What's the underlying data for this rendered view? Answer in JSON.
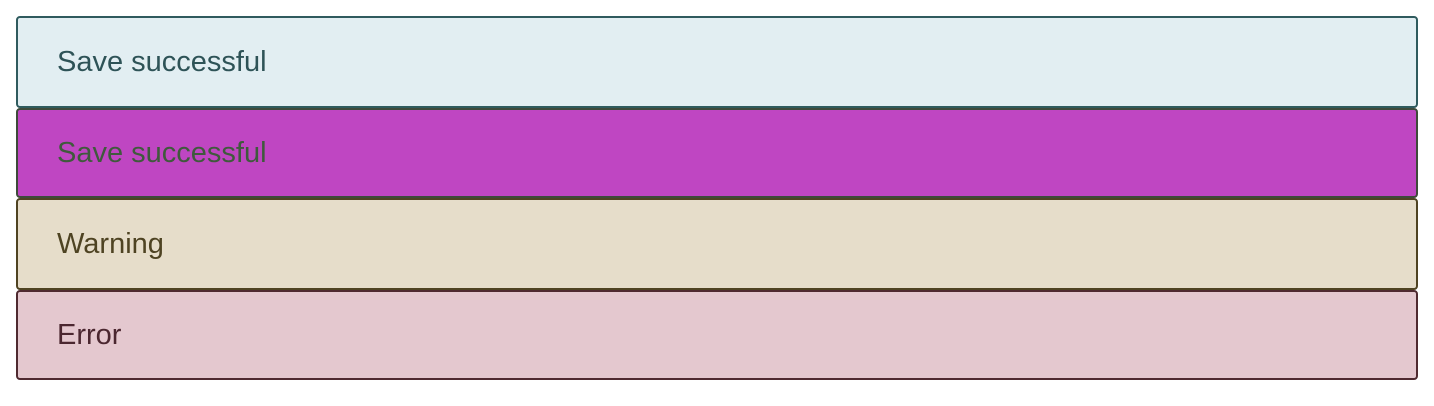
{
  "alerts": {
    "info": {
      "message": "Save successful",
      "background": "#e2eef2",
      "text_color": "#2e5357"
    },
    "success": {
      "message": "Save successful",
      "background": "#bf46c2",
      "text_color": "#3f5a3c"
    },
    "warning": {
      "message": "Warning",
      "background": "#e6ddca",
      "text_color": "#4e4322"
    },
    "error": {
      "message": "Error",
      "background": "#e4c8cf",
      "text_color": "#4b2730"
    }
  }
}
